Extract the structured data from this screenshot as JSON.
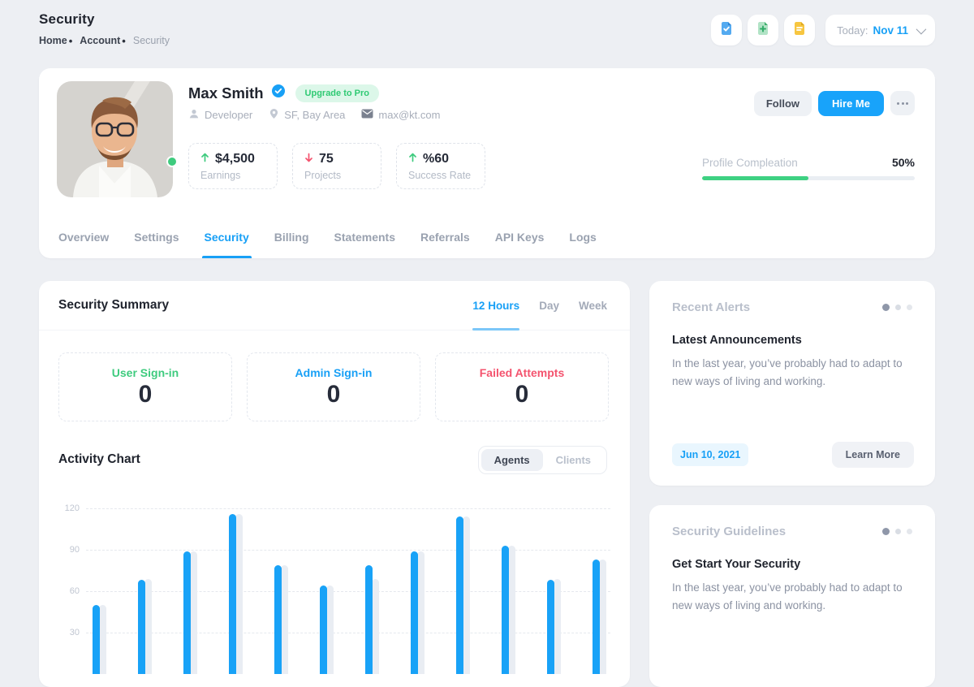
{
  "header": {
    "title": "Security",
    "breadcrumb": [
      {
        "label": "Home"
      },
      {
        "label": "Account"
      },
      {
        "label": "Security"
      }
    ],
    "actions": [
      {
        "icon": "document-check-icon",
        "color": "#4aa3ee"
      },
      {
        "icon": "document-add-icon",
        "color": "#45c07e"
      },
      {
        "icon": "document-lines-icon",
        "color": "#f5c33b"
      }
    ],
    "date_selector": {
      "prefix": "Today:",
      "value": "Nov 11"
    }
  },
  "profile": {
    "name": "Max Smith",
    "verified": true,
    "badge": "Upgrade to Pro",
    "meta": [
      {
        "icon": "user-icon",
        "label": "Developer"
      },
      {
        "icon": "location-pin-icon",
        "label": "SF, Bay Area"
      },
      {
        "icon": "mail-icon",
        "label": "max@kt.com"
      }
    ],
    "stats": [
      {
        "trend": "up",
        "value": "$4,500",
        "label": "Earnings"
      },
      {
        "trend": "down",
        "value": "75",
        "label": "Projects"
      },
      {
        "trend": "up",
        "value": "%60",
        "label": "Success Rate"
      }
    ],
    "actions": {
      "follow": "Follow",
      "hire": "Hire Me"
    },
    "progress": {
      "label": "Profile Compleation",
      "value": "50%",
      "percent": 50
    },
    "tabs": [
      "Overview",
      "Settings",
      "Security",
      "Billing",
      "Statements",
      "Referrals",
      "API Keys",
      "Logs"
    ],
    "active_tab": "Security"
  },
  "summary": {
    "title": "Security Summary",
    "periods": [
      "12 Hours",
      "Day",
      "Week"
    ],
    "active_period": "12 Hours",
    "boxes": [
      {
        "label": "User Sign-in",
        "value": "0",
        "color": "#3ecb7e"
      },
      {
        "label": "Admin Sign-in",
        "value": "0",
        "color": "#18a0f6"
      },
      {
        "label": "Failed Attempts",
        "value": "0",
        "color": "#f4536e"
      }
    ]
  },
  "activity": {
    "title": "Activity Chart",
    "toggle": [
      "Agents",
      "Clients"
    ],
    "active": "Agents"
  },
  "chart_data": {
    "type": "bar",
    "title": "Activity Chart",
    "yticks": [
      30,
      60,
      90,
      120
    ],
    "ylim": [
      0,
      130
    ],
    "grid": true,
    "x_axis_labels_visible": false,
    "series": [
      {
        "name": "agents",
        "color": "#18a2f7",
        "values": [
          50,
          68,
          89,
          116,
          79,
          64,
          79,
          89,
          114,
          93,
          68,
          83
        ]
      },
      {
        "name": "shadow",
        "color": "#e9edf3",
        "values": [
          50,
          69,
          89,
          116,
          79,
          64,
          69,
          89,
          114,
          93,
          69,
          83
        ]
      }
    ]
  },
  "alerts_card": {
    "title": "Recent Alerts",
    "subtitle": "Latest Announcements",
    "body": "In the last year, you’ve probably had to adapt to new ways of living and working.",
    "date": "Jun 10, 2021",
    "action": "Learn More"
  },
  "guidelines_card": {
    "title": "Security Guidelines",
    "subtitle": "Get Start Your Security",
    "body": "In the last year, you’ve probably had to adapt to new ways of living and working."
  },
  "colors": {
    "accent_blue": "#18a0f6",
    "green": "#3ecb7e",
    "red": "#f4536e",
    "yellow": "#f5c33b",
    "page_background": "#edeff3"
  }
}
